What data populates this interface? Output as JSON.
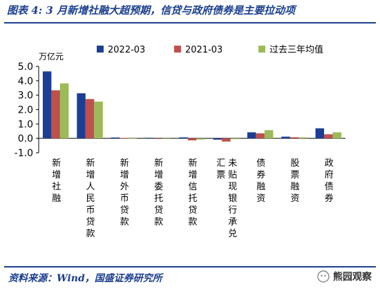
{
  "header": {
    "title": "图表 4:  3 月新增社融大超预期，信贷与政府债券是主要拉动项"
  },
  "footer": {
    "source": "资料来源：Wind，国盛证券研究所",
    "watermark": "熊园观察"
  },
  "chart_data": {
    "type": "bar",
    "unit_label": "万亿元",
    "categories": [
      "新增社融",
      "新增人民币贷款",
      "新增外币贷款",
      "新增委托贷款",
      "新增信托贷款",
      "未贴现银行承兑汇票",
      "债券融资",
      "股票融资",
      "政府债券"
    ],
    "category_columns": [
      [
        "新增社融"
      ],
      [
        "新增人民币贷款"
      ],
      [
        "新增外币贷款"
      ],
      [
        "新增委托贷款"
      ],
      [
        "新增信托贷款"
      ],
      [
        "汇票",
        "未贴现银行承兑"
      ],
      [
        "债券融资"
      ],
      [
        "股票融资"
      ],
      [
        "政府债券"
      ]
    ],
    "series": [
      {
        "name": "2022-03",
        "color": "#1c3f95",
        "values": [
          4.65,
          3.13,
          0.06,
          0.04,
          0.07,
          -0.09,
          0.42,
          0.12,
          0.7
        ]
      },
      {
        "name": "2021-03",
        "color": "#c0504d",
        "values": [
          3.34,
          2.73,
          0.03,
          -0.04,
          -0.14,
          -0.22,
          0.35,
          0.08,
          0.28
        ]
      },
      {
        "name": "过去三年均值",
        "color": "#9bbb59",
        "values": [
          3.82,
          2.55,
          0.01,
          -0.02,
          -0.08,
          -0.05,
          0.57,
          0.07,
          0.42
        ]
      }
    ],
    "ylim": [
      -1.0,
      5.0
    ],
    "yticks": [
      "5.0",
      "4.0",
      "3.0",
      "2.0",
      "1.0",
      "0.0",
      "-1.0"
    ],
    "ytick_values": [
      5,
      4,
      3,
      2,
      1,
      0,
      -1
    ],
    "legend_position": "top",
    "grid": false
  }
}
